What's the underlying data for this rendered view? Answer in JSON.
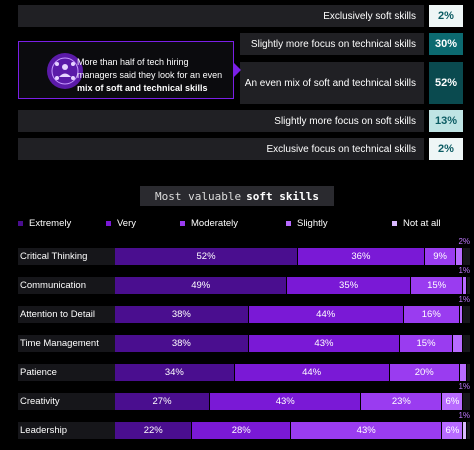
{
  "focus_rows": [
    {
      "label": "Exclusively soft skills",
      "value": "2%",
      "bg": "#eef6f6",
      "fg": "#0c5c63"
    },
    {
      "label": "Slightly more focus on technical skills",
      "value": "30%",
      "bg": "#0c6a70",
      "fg": "#ffffff"
    },
    {
      "label": "An even mix of soft and technical skills",
      "value": "52%",
      "bg": "#0a4a4f",
      "fg": "#ffffff"
    },
    {
      "label": "Slightly more focus on soft skills",
      "value": "13%",
      "bg": "#bfe4e4",
      "fg": "#0c5c63"
    },
    {
      "label": "Exclusive focus on technical skills",
      "value": "2%",
      "bg": "#eef6f6",
      "fg": "#0c5c63"
    }
  ],
  "callout": {
    "text_before": "More than half of tech hiring managers said they look for an even",
    "text_bold": "mix of soft and technical skills"
  },
  "section_title": {
    "prefix": "Most valuable",
    "bold": "soft skills"
  },
  "legend": [
    {
      "label": "Extremely",
      "color": "#4a0e8f"
    },
    {
      "label": "Very",
      "color": "#7a19d6"
    },
    {
      "label": "Moderately",
      "color": "#9a3cf0"
    },
    {
      "label": "Slightly",
      "color": "#b86bff"
    },
    {
      "label": "Not at all",
      "color": "#d9b8ff"
    }
  ],
  "chart_data": {
    "type": "bar",
    "stacked": true,
    "orientation": "horizontal",
    "title": "Most valuable soft skills",
    "categories": [
      "Critical Thinking",
      "Communication",
      "Attention to Detail",
      "Time Management",
      "Patience",
      "Creativity",
      "Leadership"
    ],
    "series": [
      {
        "name": "Extremely",
        "values": [
          52,
          49,
          38,
          38,
          34,
          27,
          22
        ],
        "labels": [
          "52%",
          "49%",
          "38%",
          "38%",
          "34%",
          "27%",
          "22%"
        ]
      },
      {
        "name": "Very",
        "values": [
          36,
          35,
          44,
          43,
          44,
          43,
          28
        ],
        "labels": [
          "36%",
          "35%",
          "44%",
          "43%",
          "44%",
          "43%",
          "28%"
        ]
      },
      {
        "name": "Moderately",
        "values": [
          9,
          15,
          16,
          15,
          20,
          23,
          43
        ],
        "labels": [
          "9%",
          "15%",
          "16%",
          "15%",
          "20%",
          "23%",
          "43%"
        ]
      },
      {
        "name": "Slightly",
        "values": [
          2,
          1,
          1,
          3,
          2,
          6,
          6
        ],
        "labels": [
          "2%",
          "1%",
          "1%",
          "3%",
          "",
          "6%",
          "6%"
        ]
      },
      {
        "name": "Not at all",
        "values": [
          0,
          0,
          0,
          0,
          0,
          0,
          1
        ],
        "labels": [
          "",
          "",
          "",
          "",
          "",
          "",
          "1%"
        ]
      }
    ],
    "above_labels": [
      "2%",
      "1%",
      "1%",
      "",
      "",
      "1%",
      "1%"
    ],
    "xlim": [
      0,
      100
    ],
    "legend_position": "top"
  }
}
